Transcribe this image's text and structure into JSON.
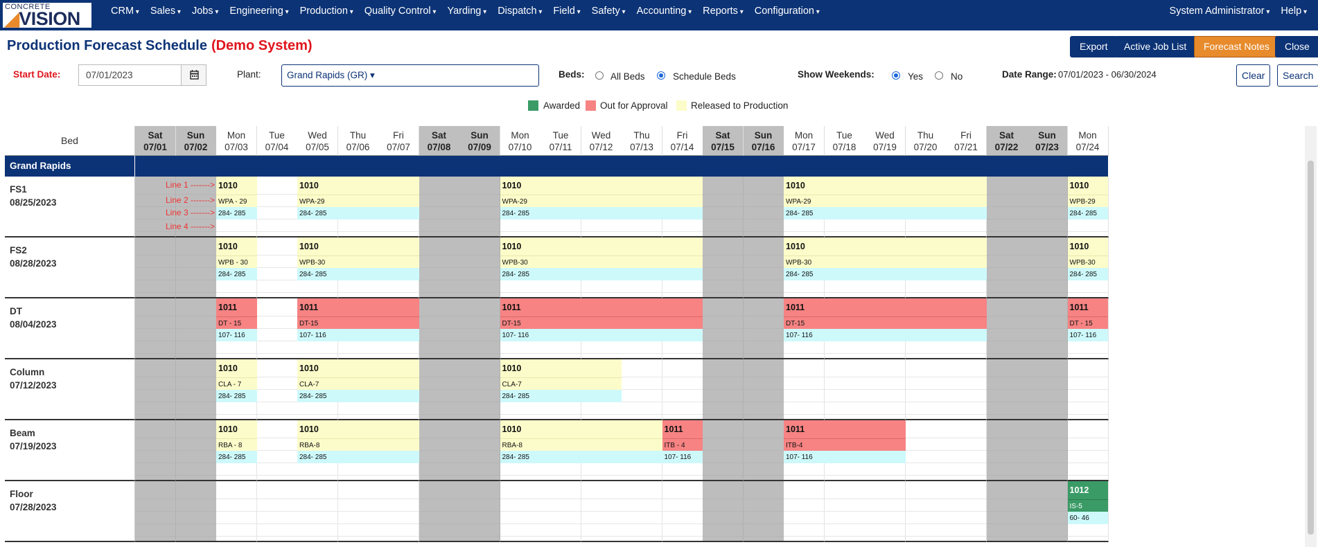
{
  "brand": {
    "line1": "CONCRETE",
    "line2a": "◢",
    "line2b": "VISION"
  },
  "nav": {
    "items": [
      "CRM",
      "Sales",
      "Jobs",
      "Engineering",
      "Production",
      "Quality Control",
      "Yarding",
      "Dispatch",
      "Field",
      "Safety",
      "Accounting",
      "Reports",
      "Configuration"
    ],
    "right": [
      "System Administrator",
      "Help"
    ]
  },
  "title": {
    "main": "Production Forecast Schedule",
    "demo": "(Demo System)"
  },
  "buttons": {
    "export": "Export",
    "active_job_list": "Active Job List",
    "forecast_notes": "Forecast Notes",
    "close": "Close",
    "clear": "Clear",
    "search": "Search"
  },
  "filters": {
    "start_date_label": "Start Date:",
    "start_date_value": "07/01/2023",
    "plant_label": "Plant:",
    "plant_value": "Grand Rapids (GR) ▾",
    "beds_label": "Beds:",
    "beds_options": [
      "All Beds",
      "Schedule Beds"
    ],
    "beds_selected": 1,
    "weekends_label": "Show Weekends:",
    "weekends_options": [
      "Yes",
      "No"
    ],
    "weekends_selected": 0,
    "date_range_label": "Date Range:",
    "date_range_value": "07/01/2023 - 06/30/2024"
  },
  "legend": [
    {
      "label": "Awarded",
      "color": "#3a9b67"
    },
    {
      "label": "Out for Approval",
      "color": "#f78383"
    },
    {
      "label": "Released to Production",
      "color": "#fcfcca"
    }
  ],
  "grid": {
    "bed_header": "Bed",
    "group": "Grand Rapids",
    "line_labels": [
      "Line 1 ------->",
      "Line 2 ------->",
      "Line 3 ------->",
      "Line 4 ------->"
    ],
    "days": [
      {
        "dn": "Sat",
        "dd": "07/01",
        "we": true
      },
      {
        "dn": "Sun",
        "dd": "07/02",
        "we": true
      },
      {
        "dn": "Mon",
        "dd": "07/03"
      },
      {
        "dn": "Tue",
        "dd": "07/04"
      },
      {
        "dn": "Wed",
        "dd": "07/05"
      },
      {
        "dn": "Thu",
        "dd": "07/06"
      },
      {
        "dn": "Fri",
        "dd": "07/07"
      },
      {
        "dn": "Sat",
        "dd": "07/08",
        "we": true
      },
      {
        "dn": "Sun",
        "dd": "07/09",
        "we": true
      },
      {
        "dn": "Mon",
        "dd": "07/10"
      },
      {
        "dn": "Tue",
        "dd": "07/11"
      },
      {
        "dn": "Wed",
        "dd": "07/12"
      },
      {
        "dn": "Thu",
        "dd": "07/13"
      },
      {
        "dn": "Fri",
        "dd": "07/14"
      },
      {
        "dn": "Sat",
        "dd": "07/15",
        "we": true
      },
      {
        "dn": "Sun",
        "dd": "07/16",
        "we": true
      },
      {
        "dn": "Mon",
        "dd": "07/17"
      },
      {
        "dn": "Tue",
        "dd": "07/18"
      },
      {
        "dn": "Wed",
        "dd": "07/19"
      },
      {
        "dn": "Thu",
        "dd": "07/20"
      },
      {
        "dn": "Fri",
        "dd": "07/21"
      },
      {
        "dn": "Sat",
        "dd": "07/22",
        "we": true
      },
      {
        "dn": "Sun",
        "dd": "07/23",
        "we": true
      },
      {
        "dn": "Mon",
        "dd": "07/24"
      }
    ],
    "beds": [
      {
        "name": "FS1",
        "date": "08/25/2023",
        "jobs": [
          {
            "start": 2,
            "span": 1,
            "color": "y",
            "job": "1010",
            "piece": "WPA - 29",
            "marks": "284- 285"
          },
          {
            "start": 4,
            "span": 3,
            "color": "y",
            "job": "1010",
            "piece": "WPA-29",
            "marks": "284- 285"
          },
          {
            "start": 9,
            "span": 5,
            "color": "y",
            "job": "1010",
            "piece": "WPA-29",
            "marks": "284- 285"
          },
          {
            "start": 16,
            "span": 5,
            "color": "y",
            "job": "1010",
            "piece": "WPA-29",
            "marks": "284- 285"
          },
          {
            "start": 23,
            "span": 1,
            "color": "y",
            "job": "1010",
            "piece": "WPB-29",
            "marks": "284- 285"
          }
        ]
      },
      {
        "name": "FS2",
        "date": "08/28/2023",
        "jobs": [
          {
            "start": 2,
            "span": 1,
            "color": "y",
            "job": "1010",
            "piece": "WPB - 30",
            "marks": "284- 285"
          },
          {
            "start": 4,
            "span": 3,
            "color": "y",
            "job": "1010",
            "piece": "WPB-30",
            "marks": "284- 285"
          },
          {
            "start": 9,
            "span": 5,
            "color": "y",
            "job": "1010",
            "piece": "WPB-30",
            "marks": "284- 285"
          },
          {
            "start": 16,
            "span": 5,
            "color": "y",
            "job": "1010",
            "piece": "WPB-30",
            "marks": "284- 285"
          },
          {
            "start": 23,
            "span": 1,
            "color": "y",
            "job": "1010",
            "piece": "WPB-30",
            "marks": "284- 285"
          }
        ]
      },
      {
        "name": "DT",
        "date": "08/04/2023",
        "jobs": [
          {
            "start": 2,
            "span": 1,
            "color": "r",
            "job": "1011",
            "piece": "DT - 15",
            "marks": "107- 116"
          },
          {
            "start": 4,
            "span": 3,
            "color": "r",
            "job": "1011",
            "piece": "DT-15",
            "marks": "107- 116"
          },
          {
            "start": 9,
            "span": 5,
            "color": "r",
            "job": "1011",
            "piece": "DT-15",
            "marks": "107- 116"
          },
          {
            "start": 16,
            "span": 5,
            "color": "r",
            "job": "1011",
            "piece": "DT-15",
            "marks": "107- 116"
          },
          {
            "start": 23,
            "span": 1,
            "color": "r",
            "job": "1011",
            "piece": "DT - 15",
            "marks": "107- 116"
          }
        ]
      },
      {
        "name": "Column",
        "date": "07/12/2023",
        "jobs": [
          {
            "start": 2,
            "span": 1,
            "color": "y",
            "job": "1010",
            "piece": "CLA - 7",
            "marks": "284- 285"
          },
          {
            "start": 4,
            "span": 3,
            "color": "y",
            "job": "1010",
            "piece": "CLA-7",
            "marks": "284- 285"
          },
          {
            "start": 9,
            "span": 3,
            "color": "y",
            "job": "1010",
            "piece": "CLA-7",
            "marks": "284- 285"
          }
        ]
      },
      {
        "name": "Beam",
        "date": "07/19/2023",
        "jobs": [
          {
            "start": 2,
            "span": 1,
            "color": "y",
            "job": "1010",
            "piece": "RBA - 8",
            "marks": "284- 285"
          },
          {
            "start": 4,
            "span": 3,
            "color": "y",
            "job": "1010",
            "piece": "RBA-8",
            "marks": "284- 285"
          },
          {
            "start": 9,
            "span": 4,
            "color": "y",
            "job": "1010",
            "piece": "RBA-8",
            "marks": "284- 285"
          },
          {
            "start": 13,
            "span": 1,
            "color": "r",
            "job": "1011",
            "piece": "ITB - 4",
            "marks": "107- 116"
          },
          {
            "start": 16,
            "span": 3,
            "color": "r",
            "job": "1011",
            "piece": "ITB-4",
            "marks": "107- 116"
          }
        ]
      },
      {
        "name": "Floor",
        "date": "07/28/2023",
        "jobs": [
          {
            "start": 23,
            "span": 1,
            "color": "g",
            "job": "1012",
            "piece": "IS-5",
            "marks": "60- 46"
          }
        ]
      }
    ]
  }
}
